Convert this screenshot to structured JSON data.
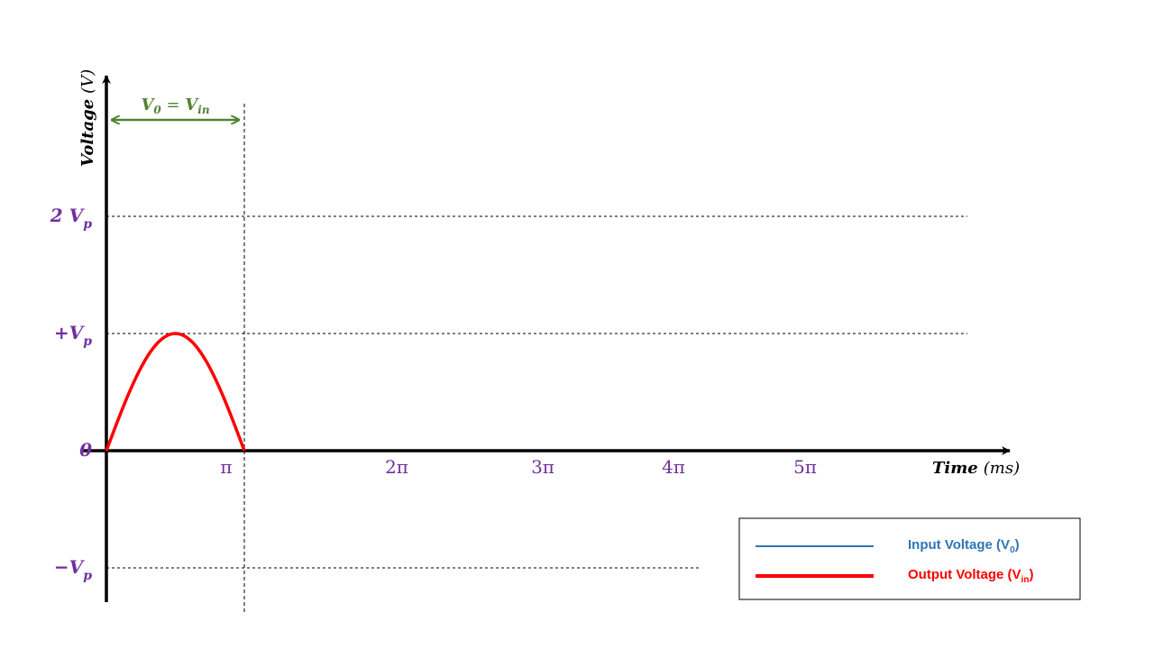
{
  "chart_data": {
    "type": "line",
    "xlabel": {
      "main": "Time",
      "unit": "(ms)"
    },
    "ylabel": {
      "main": "Voltage",
      "unit": "(V)"
    },
    "x_ticks": [
      "π",
      "2π",
      "3π",
      "4π",
      "5π"
    ],
    "y_ticks": [
      {
        "value": 2,
        "label": "2 V",
        "sub": "p"
      },
      {
        "value": 1,
        "label": "+V",
        "sub": "p"
      },
      {
        "value": 0,
        "label": "0",
        "sub": ""
      },
      {
        "value": -1,
        "label": "−V",
        "sub": "p"
      }
    ],
    "xlim": [
      0,
      5.6
    ],
    "ylim": [
      -1.3,
      3.25
    ],
    "reference_lines_y": [
      2,
      1,
      -1
    ],
    "region_marker": {
      "x": 1,
      "label_main": "V",
      "label_sub0": "0",
      "label_eq": " = V",
      "label_sub1": "in",
      "color": "#548235"
    },
    "series": [
      {
        "name": "Input Voltage",
        "sub": "0",
        "color": "#2e75b6",
        "points": []
      },
      {
        "name": "Output Voltage",
        "sub": "in",
        "color": "#ff0000",
        "points": [
          [
            0,
            0
          ],
          [
            0.1,
            0.31
          ],
          [
            0.2,
            0.59
          ],
          [
            0.3,
            0.81
          ],
          [
            0.4,
            0.95
          ],
          [
            0.5,
            1.0
          ],
          [
            0.6,
            0.95
          ],
          [
            0.7,
            0.81
          ],
          [
            0.8,
            0.59
          ],
          [
            0.9,
            0.31
          ],
          [
            1.0,
            0
          ]
        ]
      }
    ],
    "legend": {
      "position": "bottom-right",
      "items": [
        {
          "label": "Input Voltage (V",
          "sub": "0",
          "close": ")",
          "color": "#2e75b6",
          "text_color": "#2e75b6"
        },
        {
          "label": "Output Voltage (V",
          "sub": "in",
          "close": ")",
          "color": "#ff0000",
          "text_color": "#ff0000"
        }
      ]
    }
  }
}
